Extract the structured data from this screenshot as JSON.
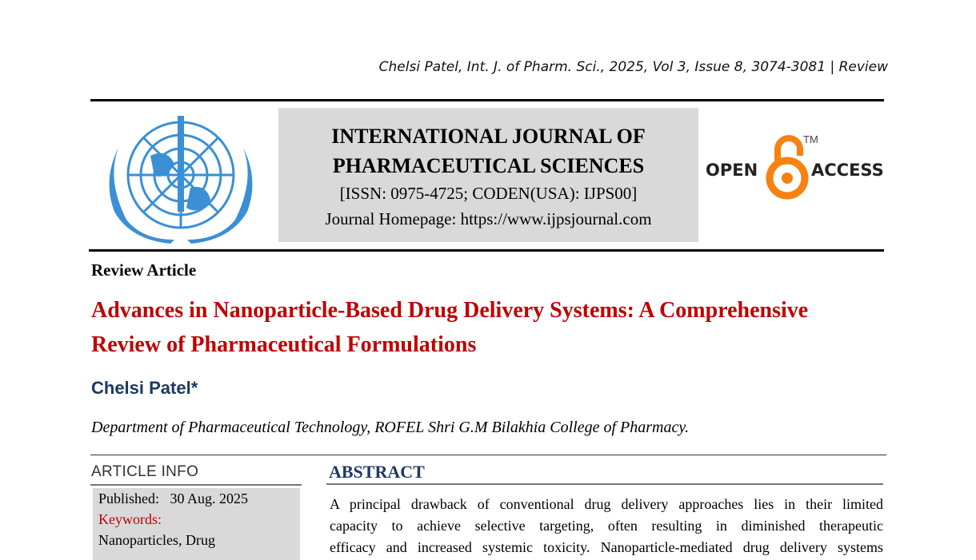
{
  "header": {
    "citation": "Chelsi Patel, Int. J. of Pharm. Sci., 2025, Vol 3, Issue 8, 3074-3081 | Review"
  },
  "journal": {
    "title_line1": "INTERNATIONAL JOURNAL OF",
    "title_line2": "PHARMACEUTICAL SCIENCES",
    "issn": "[ISSN: 0975-4725; CODEN(USA): IJPS00]",
    "homepage": "Journal Homepage: https://www.ijpsjournal.com"
  },
  "open_access": {
    "left": "OPEN",
    "right": "ACCESS",
    "tm": "TM",
    "color": "#f68212"
  },
  "article": {
    "type": "Review Article",
    "title": "Advances in Nanoparticle-Based Drug Delivery Systems: A Comprehensive Review of Pharmaceutical Formulations",
    "author": "Chelsi Patel*",
    "department": "Department of Pharmaceutical Technology, ROFEL Shri G.M Bilakhia College of Pharmacy."
  },
  "article_info": {
    "heading": "ARTICLE INFO",
    "published_label": "Published:",
    "published_date": "30 Aug. 2025",
    "keywords_label": "Keywords:",
    "keywords": "Nanoparticles, Drug"
  },
  "abstract": {
    "heading": "ABSTRACT",
    "lines": [
      "A principal drawback of conventional drug delivery approaches lies in their limited",
      "capacity to achieve selective targeting, often resulting in diminished therapeutic",
      "efficacy and increased systemic toxicity. Nanoparticle-mediated drug delivery systems"
    ]
  },
  "colors": {
    "title": "#c00000",
    "author": "#1f3864",
    "logo": "#3a8fd6",
    "box": "#d9d9d9"
  }
}
